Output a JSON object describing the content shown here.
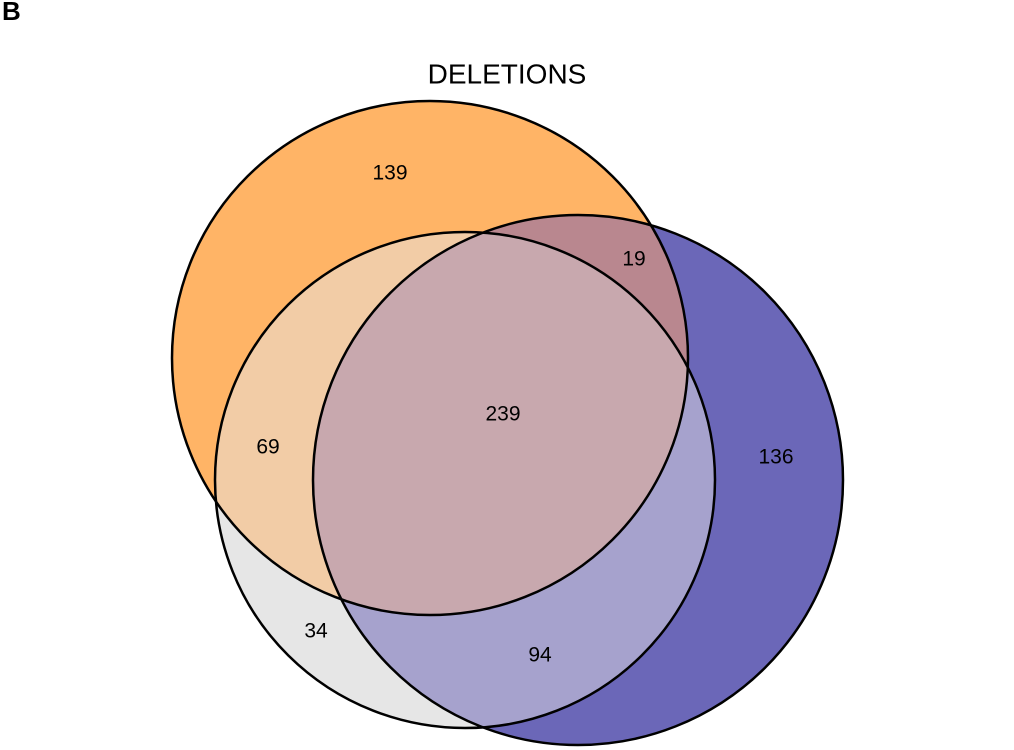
{
  "panel_letter": "B",
  "title": "DELETIONS",
  "colors": {
    "orange": "#ffb466",
    "white_set": "#e6e6e6",
    "blue": "#6b67b8",
    "orange_white": "#f2cca6",
    "white_blue": "#a6a2cd",
    "orange_blue": "#b9878f",
    "all": "#c8a8ae",
    "outline": "#000000"
  },
  "regions": {
    "orange_only": "139",
    "orange_blue": "19",
    "orange_white": "69",
    "all_three": "239",
    "blue_only": "136",
    "white_only": "34",
    "white_blue": "94"
  }
}
